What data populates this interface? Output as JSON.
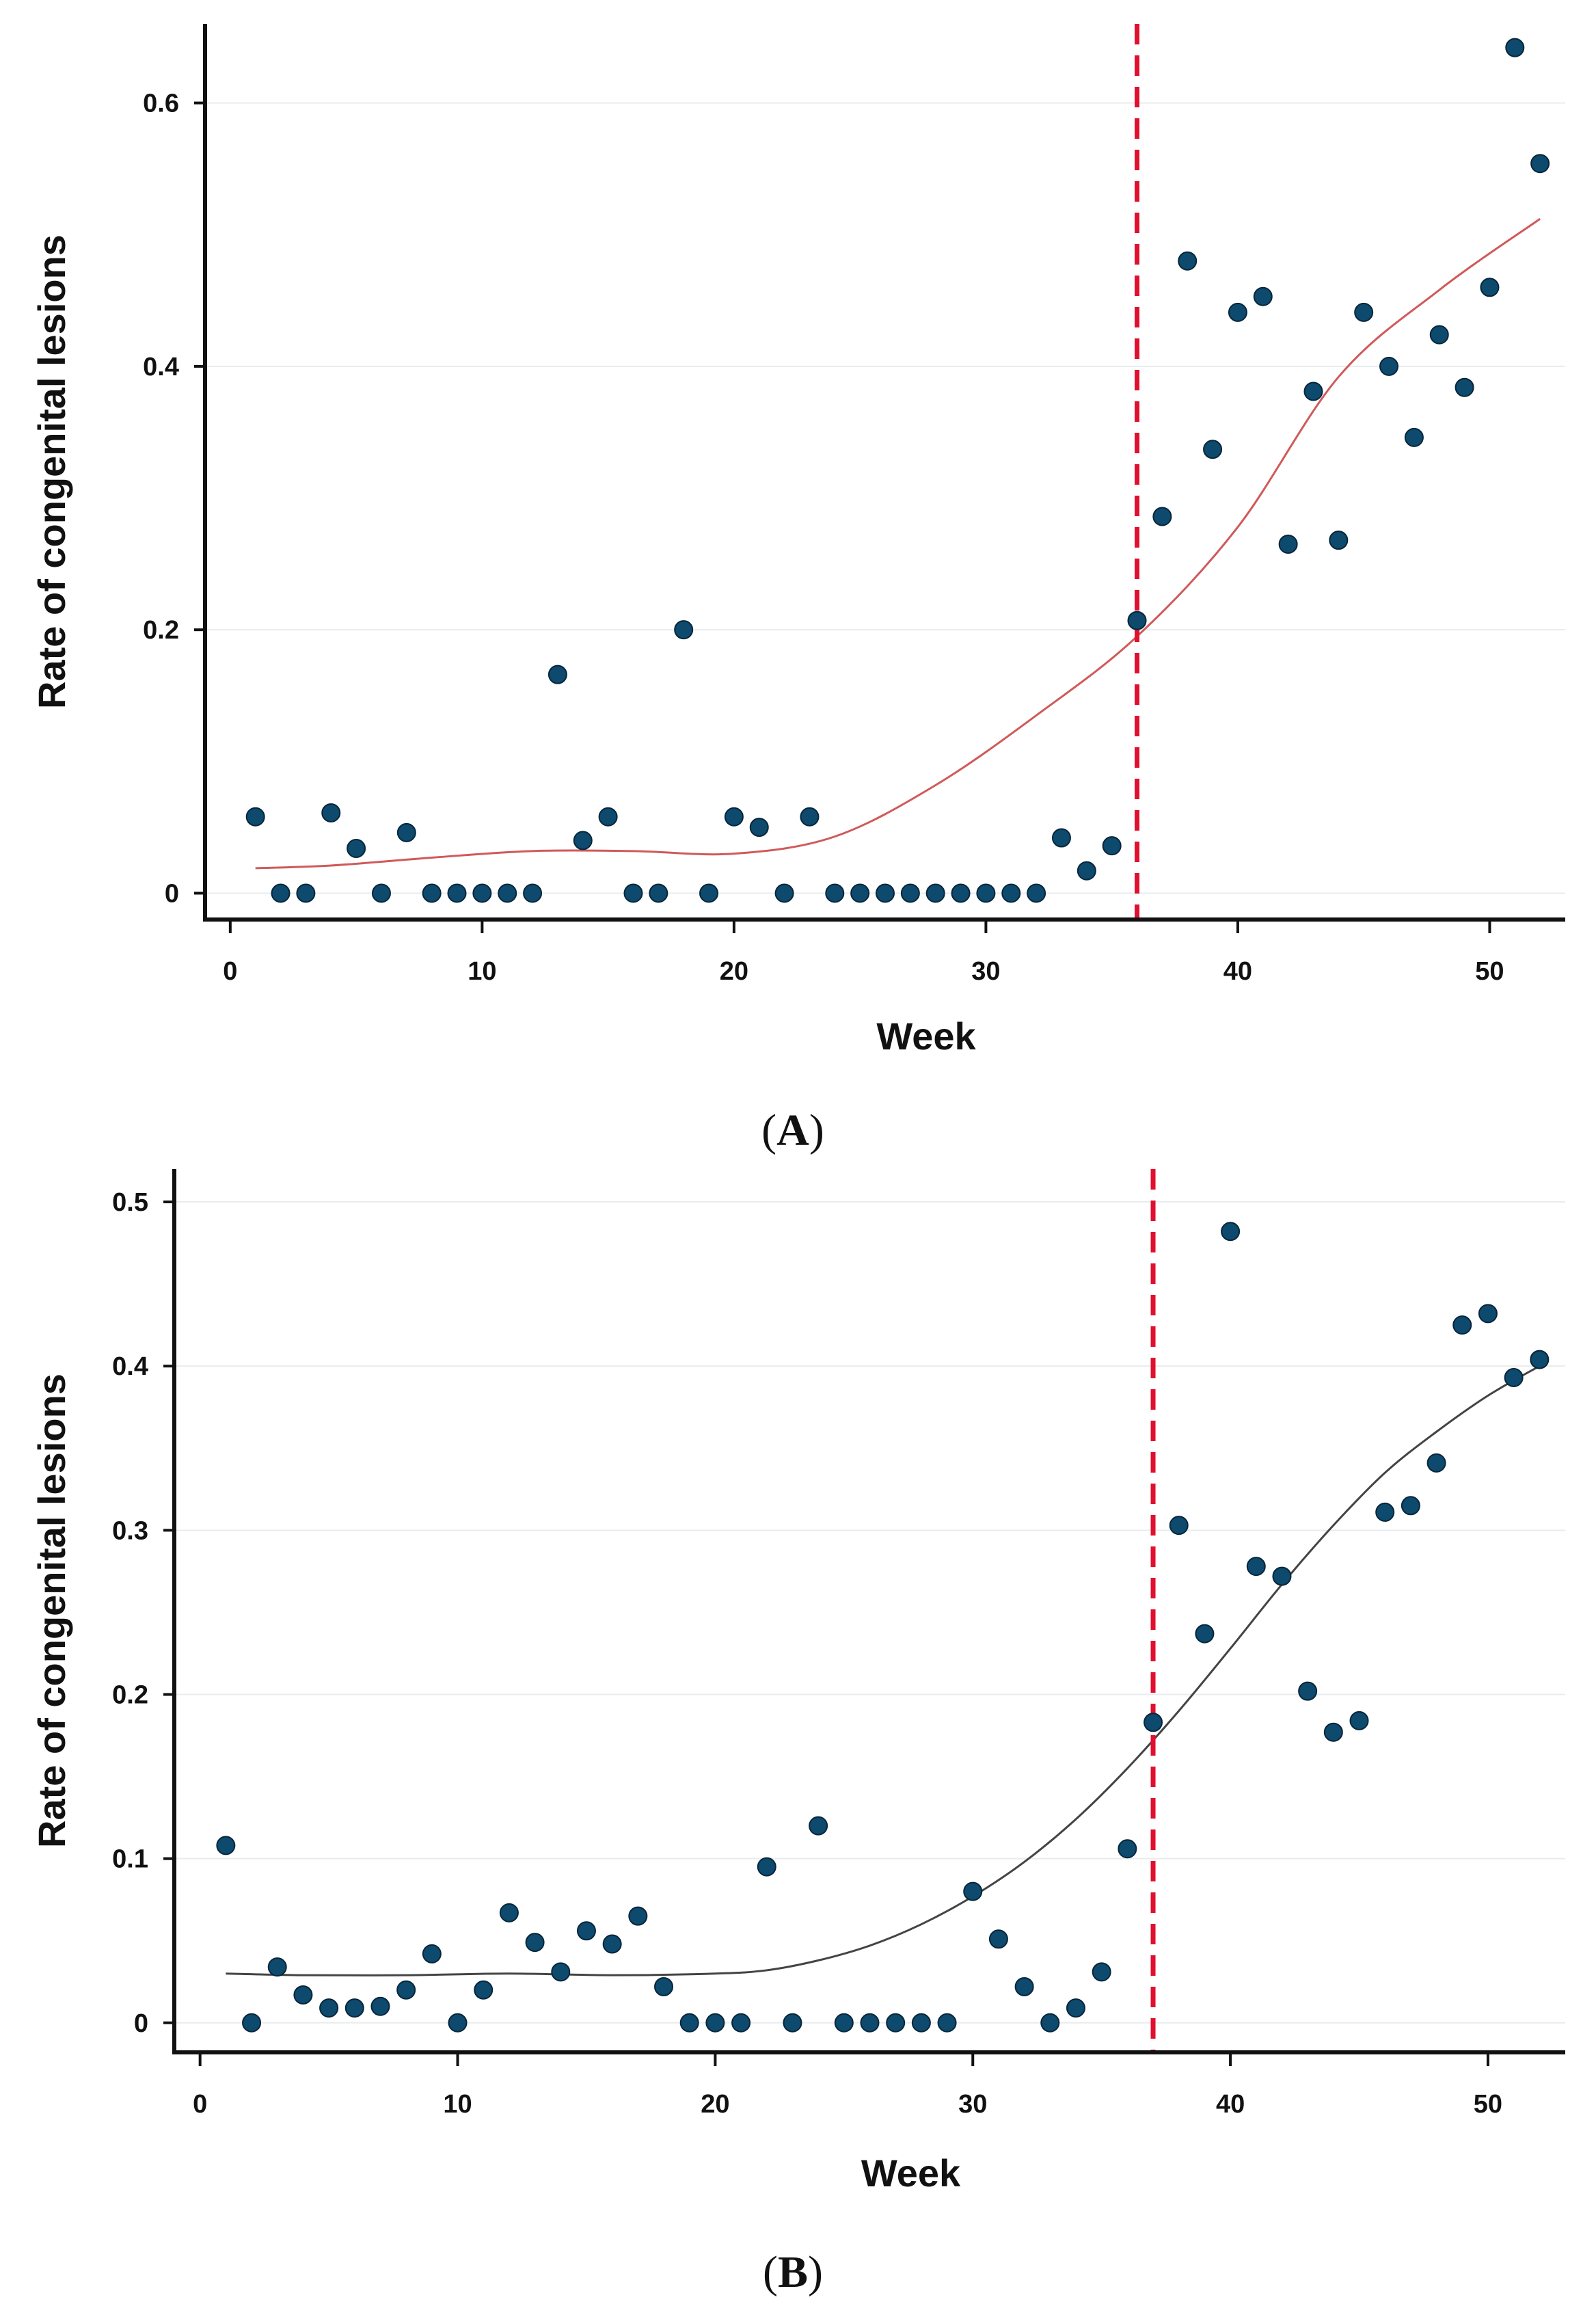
{
  "chart_data": [
    {
      "type": "scatter",
      "panel_label": "A",
      "xlabel": "Week",
      "ylabel": "Rate of congenital lesions",
      "xlim": [
        -1,
        53
      ],
      "ylim": [
        -0.02,
        0.66
      ],
      "x_ticks": [
        0,
        10,
        20,
        30,
        40,
        50
      ],
      "x_tick_labels": [
        "0",
        "10",
        "20",
        "30",
        "40",
        "50"
      ],
      "y_ticks": [
        0,
        0.2,
        0.4,
        0.6
      ],
      "y_tick_labels": [
        "0",
        "0.2",
        "0.4",
        "0.6"
      ],
      "cutoff_week": 36,
      "colors": {
        "points": "#0d4a6e",
        "fit": "#d05a5a",
        "cutoff": "#e0102f"
      },
      "series": [
        {
          "name": "observed",
          "x": [
            1,
            2,
            3,
            4,
            5,
            6,
            7,
            8,
            9,
            10,
            11,
            12,
            13,
            14,
            15,
            16,
            17,
            18,
            19,
            20,
            21,
            22,
            23,
            24,
            25,
            26,
            27,
            28,
            29,
            30,
            31,
            32,
            33,
            34,
            35,
            36,
            37,
            38,
            39,
            40,
            41,
            42,
            43,
            44,
            45,
            46,
            47,
            48,
            49,
            50,
            51,
            52
          ],
          "y": [
            0.058,
            0,
            0,
            0.061,
            0.034,
            0,
            0.046,
            0,
            0,
            0,
            0,
            0,
            0.166,
            0.04,
            0.058,
            0,
            0,
            0.2,
            0,
            0.058,
            0.05,
            0,
            0.058,
            0,
            0,
            0,
            0,
            0,
            0,
            0,
            0,
            0,
            0.042,
            0.017,
            0.036,
            0.207,
            0.286,
            0.48,
            0.337,
            0.441,
            0.453,
            0.265,
            0.381,
            0.268,
            0.441,
            0.4,
            0.346,
            0.424,
            0.384,
            0.46,
            0.642,
            0.554
          ]
        },
        {
          "name": "fitted trend",
          "x": [
            1,
            4,
            8,
            12,
            16,
            20,
            24,
            28,
            32,
            36,
            40,
            44,
            48,
            52
          ],
          "y": [
            0.019,
            0.021,
            0.027,
            0.032,
            0.032,
            0.03,
            0.043,
            0.082,
            0.135,
            0.195,
            0.278,
            0.392,
            0.458,
            0.512
          ]
        }
      ]
    },
    {
      "type": "scatter",
      "panel_label": "B",
      "xlabel": "Week",
      "ylabel": "Rate of congenital lesions",
      "xlim": [
        -1,
        53
      ],
      "ylim": [
        -0.018,
        0.52
      ],
      "x_ticks": [
        0,
        10,
        20,
        30,
        40,
        50
      ],
      "x_tick_labels": [
        "0",
        "10",
        "20",
        "30",
        "40",
        "50"
      ],
      "y_ticks": [
        0,
        0.1,
        0.2,
        0.3,
        0.4,
        0.5
      ],
      "y_tick_labels": [
        "0",
        "0.1",
        "0.2",
        "0.3",
        "0.4",
        "0.5"
      ],
      "cutoff_week": 37,
      "colors": {
        "points": "#0d4a6e",
        "fit": "#444444",
        "cutoff": "#e0102f"
      },
      "series": [
        {
          "name": "observed",
          "x": [
            1,
            2,
            3,
            4,
            5,
            6,
            7,
            8,
            9,
            10,
            11,
            12,
            13,
            14,
            15,
            16,
            17,
            18,
            19,
            20,
            21,
            22,
            23,
            24,
            25,
            26,
            27,
            28,
            29,
            30,
            31,
            32,
            33,
            34,
            35,
            36,
            37,
            38,
            39,
            40,
            41,
            42,
            43,
            44,
            45,
            46,
            47,
            48,
            49,
            50,
            51,
            52
          ],
          "y": [
            0.108,
            0,
            0.034,
            0.017,
            0.009,
            0.009,
            0.01,
            0.02,
            0.042,
            0,
            0.02,
            0.067,
            0.049,
            0.031,
            0.056,
            0.048,
            0.065,
            0.022,
            0,
            0,
            0,
            0.095,
            0,
            0.12,
            0,
            0,
            0,
            0,
            0,
            0.08,
            0.051,
            0.022,
            0,
            0.009,
            0.031,
            0.106,
            0.183,
            0.303,
            0.237,
            0.482,
            0.278,
            0.272,
            0.202,
            0.177,
            0.184,
            0.311,
            0.315,
            0.341,
            0.425,
            0.432,
            0.393,
            0.404
          ]
        },
        {
          "name": "fitted trend",
          "x": [
            1,
            4,
            8,
            12,
            16,
            20,
            22,
            24,
            26,
            28,
            30,
            32,
            34,
            36,
            38,
            40,
            42,
            44,
            46,
            48,
            50,
            52
          ],
          "y": [
            0.03,
            0.029,
            0.029,
            0.03,
            0.029,
            0.03,
            0.032,
            0.038,
            0.047,
            0.06,
            0.077,
            0.098,
            0.124,
            0.155,
            0.19,
            0.228,
            0.267,
            0.303,
            0.335,
            0.36,
            0.382,
            0.4
          ]
        }
      ]
    }
  ]
}
